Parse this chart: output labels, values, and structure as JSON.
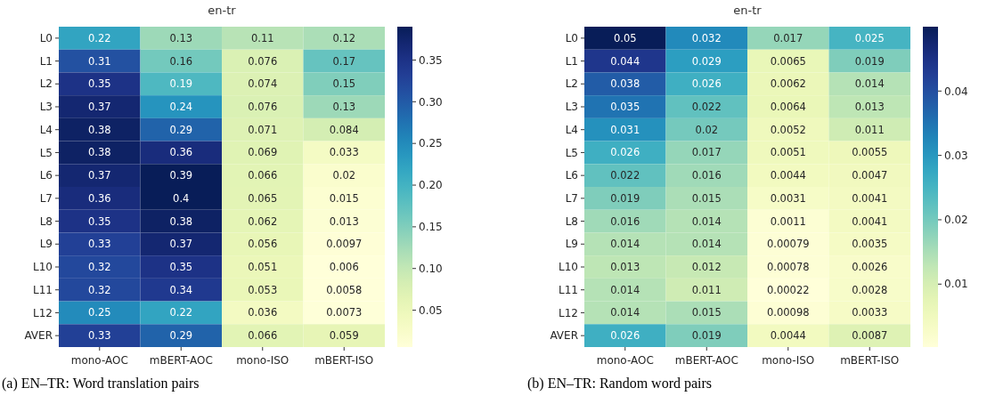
{
  "chart_data": [
    {
      "type": "heatmap",
      "title": "en-tr",
      "categories": [
        "mono-AOC",
        "mBERT-AOC",
        "mono-ISO",
        "mBERT-ISO"
      ],
      "y_categories": [
        "L0",
        "L1",
        "L2",
        "L3",
        "L4",
        "L5",
        "L6",
        "L7",
        "L8",
        "L9",
        "L10",
        "L11",
        "L12",
        "AVER"
      ],
      "cells": [
        [
          0.22,
          0.13,
          0.11,
          0.12
        ],
        [
          0.31,
          0.16,
          0.076,
          0.17
        ],
        [
          0.35,
          0.19,
          0.074,
          0.15
        ],
        [
          0.37,
          0.24,
          0.076,
          0.13
        ],
        [
          0.38,
          0.29,
          0.071,
          0.084
        ],
        [
          0.38,
          0.36,
          0.069,
          0.033
        ],
        [
          0.37,
          0.39,
          0.066,
          0.02
        ],
        [
          0.36,
          0.4,
          0.065,
          0.015
        ],
        [
          0.35,
          0.38,
          0.062,
          0.013
        ],
        [
          0.33,
          0.37,
          0.056,
          0.0097
        ],
        [
          0.32,
          0.35,
          0.051,
          0.006
        ],
        [
          0.32,
          0.34,
          0.053,
          0.0058
        ],
        [
          0.25,
          0.22,
          0.036,
          0.0073
        ],
        [
          0.33,
          0.29,
          0.066,
          0.059
        ]
      ],
      "data_labels": true,
      "clim": [
        0.0058,
        0.39
      ],
      "cticks": [
        0.05,
        {
          "value": 0.1,
          "label": "0.10"
        },
        0.15,
        {
          "value": 0.2,
          "label": "0.20"
        },
        0.25,
        {
          "value": 0.3,
          "label": "0.30"
        },
        0.35
      ],
      "annotations": [
        "(a) EN–TR: Word translation pairs"
      ]
    },
    {
      "type": "heatmap",
      "title": "en-tr",
      "categories": [
        "mono-AOC",
        "mBERT-AOC",
        "mono-ISO",
        "mBERT-ISO"
      ],
      "y_categories": [
        "L0",
        "L1",
        "L2",
        "L3",
        "L4",
        "L5",
        "L6",
        "L7",
        "L8",
        "L9",
        "L10",
        "L11",
        "L12",
        "AVER"
      ],
      "cells": [
        [
          0.05,
          0.032,
          0.017,
          0.025
        ],
        [
          0.044,
          0.029,
          0.0065,
          0.019
        ],
        [
          0.038,
          0.026,
          0.0062,
          0.014
        ],
        [
          0.035,
          0.022,
          0.0064,
          0.013
        ],
        [
          0.031,
          0.02,
          0.0052,
          0.011
        ],
        [
          0.026,
          0.017,
          0.0051,
          0.0055
        ],
        [
          0.022,
          0.016,
          0.0044,
          0.0047
        ],
        [
          0.019,
          0.015,
          0.0031,
          0.0041
        ],
        [
          0.016,
          0.014,
          0.0011,
          0.0041
        ],
        [
          0.014,
          0.014,
          0.00079,
          0.0035
        ],
        [
          0.013,
          0.012,
          0.00078,
          0.0026
        ],
        [
          0.014,
          0.011,
          0.00022,
          0.0028
        ],
        [
          0.014,
          0.015,
          0.00098,
          0.0033
        ],
        [
          0.026,
          0.019,
          0.0044,
          0.0087
        ]
      ],
      "data_labels": true,
      "clim": [
        0.00022,
        0.05
      ],
      "cticks": [
        0.01,
        0.02,
        0.03,
        0.04
      ],
      "annotations": [
        "(b) EN–TR: Random word pairs"
      ]
    }
  ]
}
